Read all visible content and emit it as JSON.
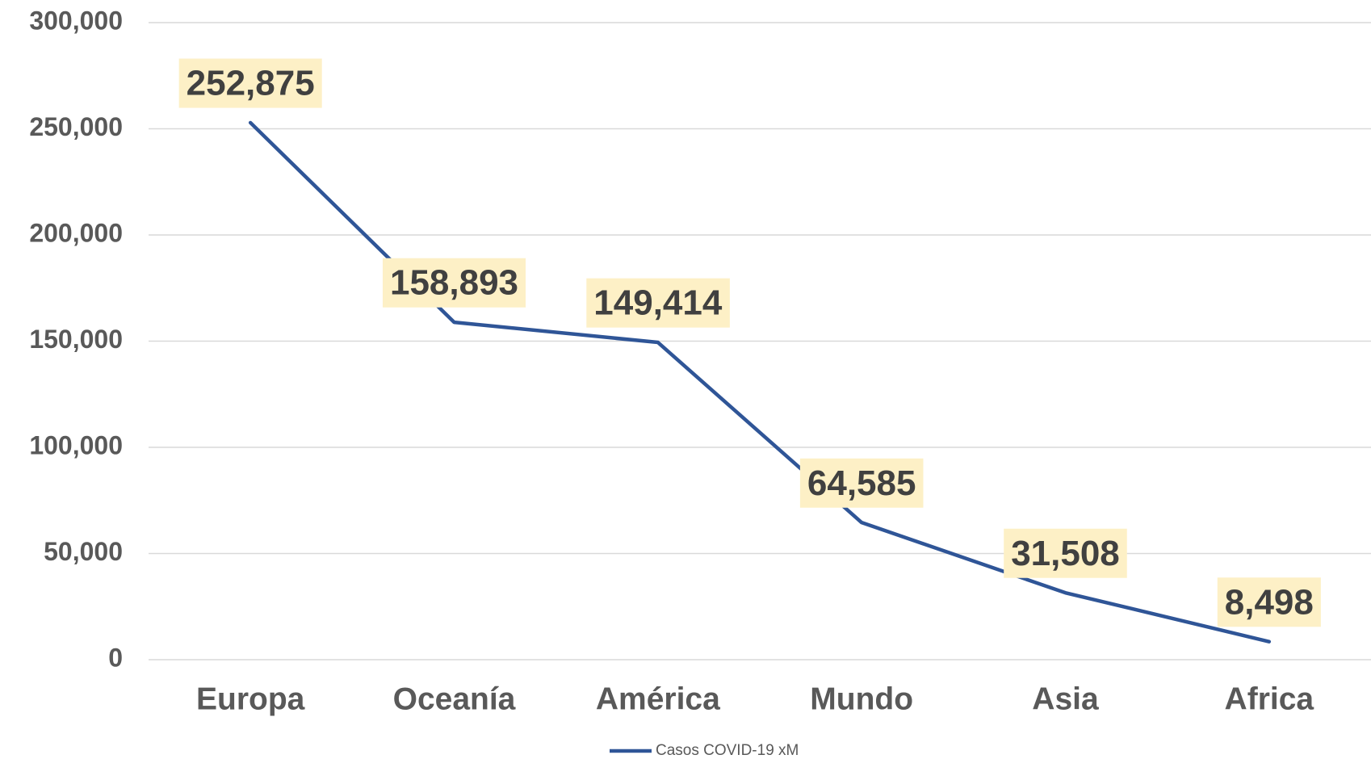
{
  "chart_data": {
    "type": "line",
    "categories": [
      "Europa",
      "Oceanía",
      "América",
      "Mundo",
      "Asia",
      "Africa"
    ],
    "series": [
      {
        "name": "Casos COVID-19 xM",
        "color": "#2f5597",
        "values": [
          252875,
          158893,
          149414,
          64585,
          31508,
          8498
        ],
        "value_labels": [
          "252,875",
          "158,893",
          "149,414",
          "64,585",
          "31,508",
          "8,498"
        ]
      }
    ],
    "ylim": [
      0,
      300000
    ],
    "yticks": [
      0,
      {
        "value": 50000,
        "label": "50,000"
      },
      {
        "value": 100000,
        "label": "100,000"
      },
      {
        "value": 150000,
        "label": "150,000"
      },
      {
        "value": 200000,
        "label": "200,000"
      },
      {
        "value": 250000,
        "label": "250,000"
      },
      {
        "value": 300000,
        "label": "300,000"
      }
    ],
    "grid": true,
    "legend": "bottom"
  }
}
